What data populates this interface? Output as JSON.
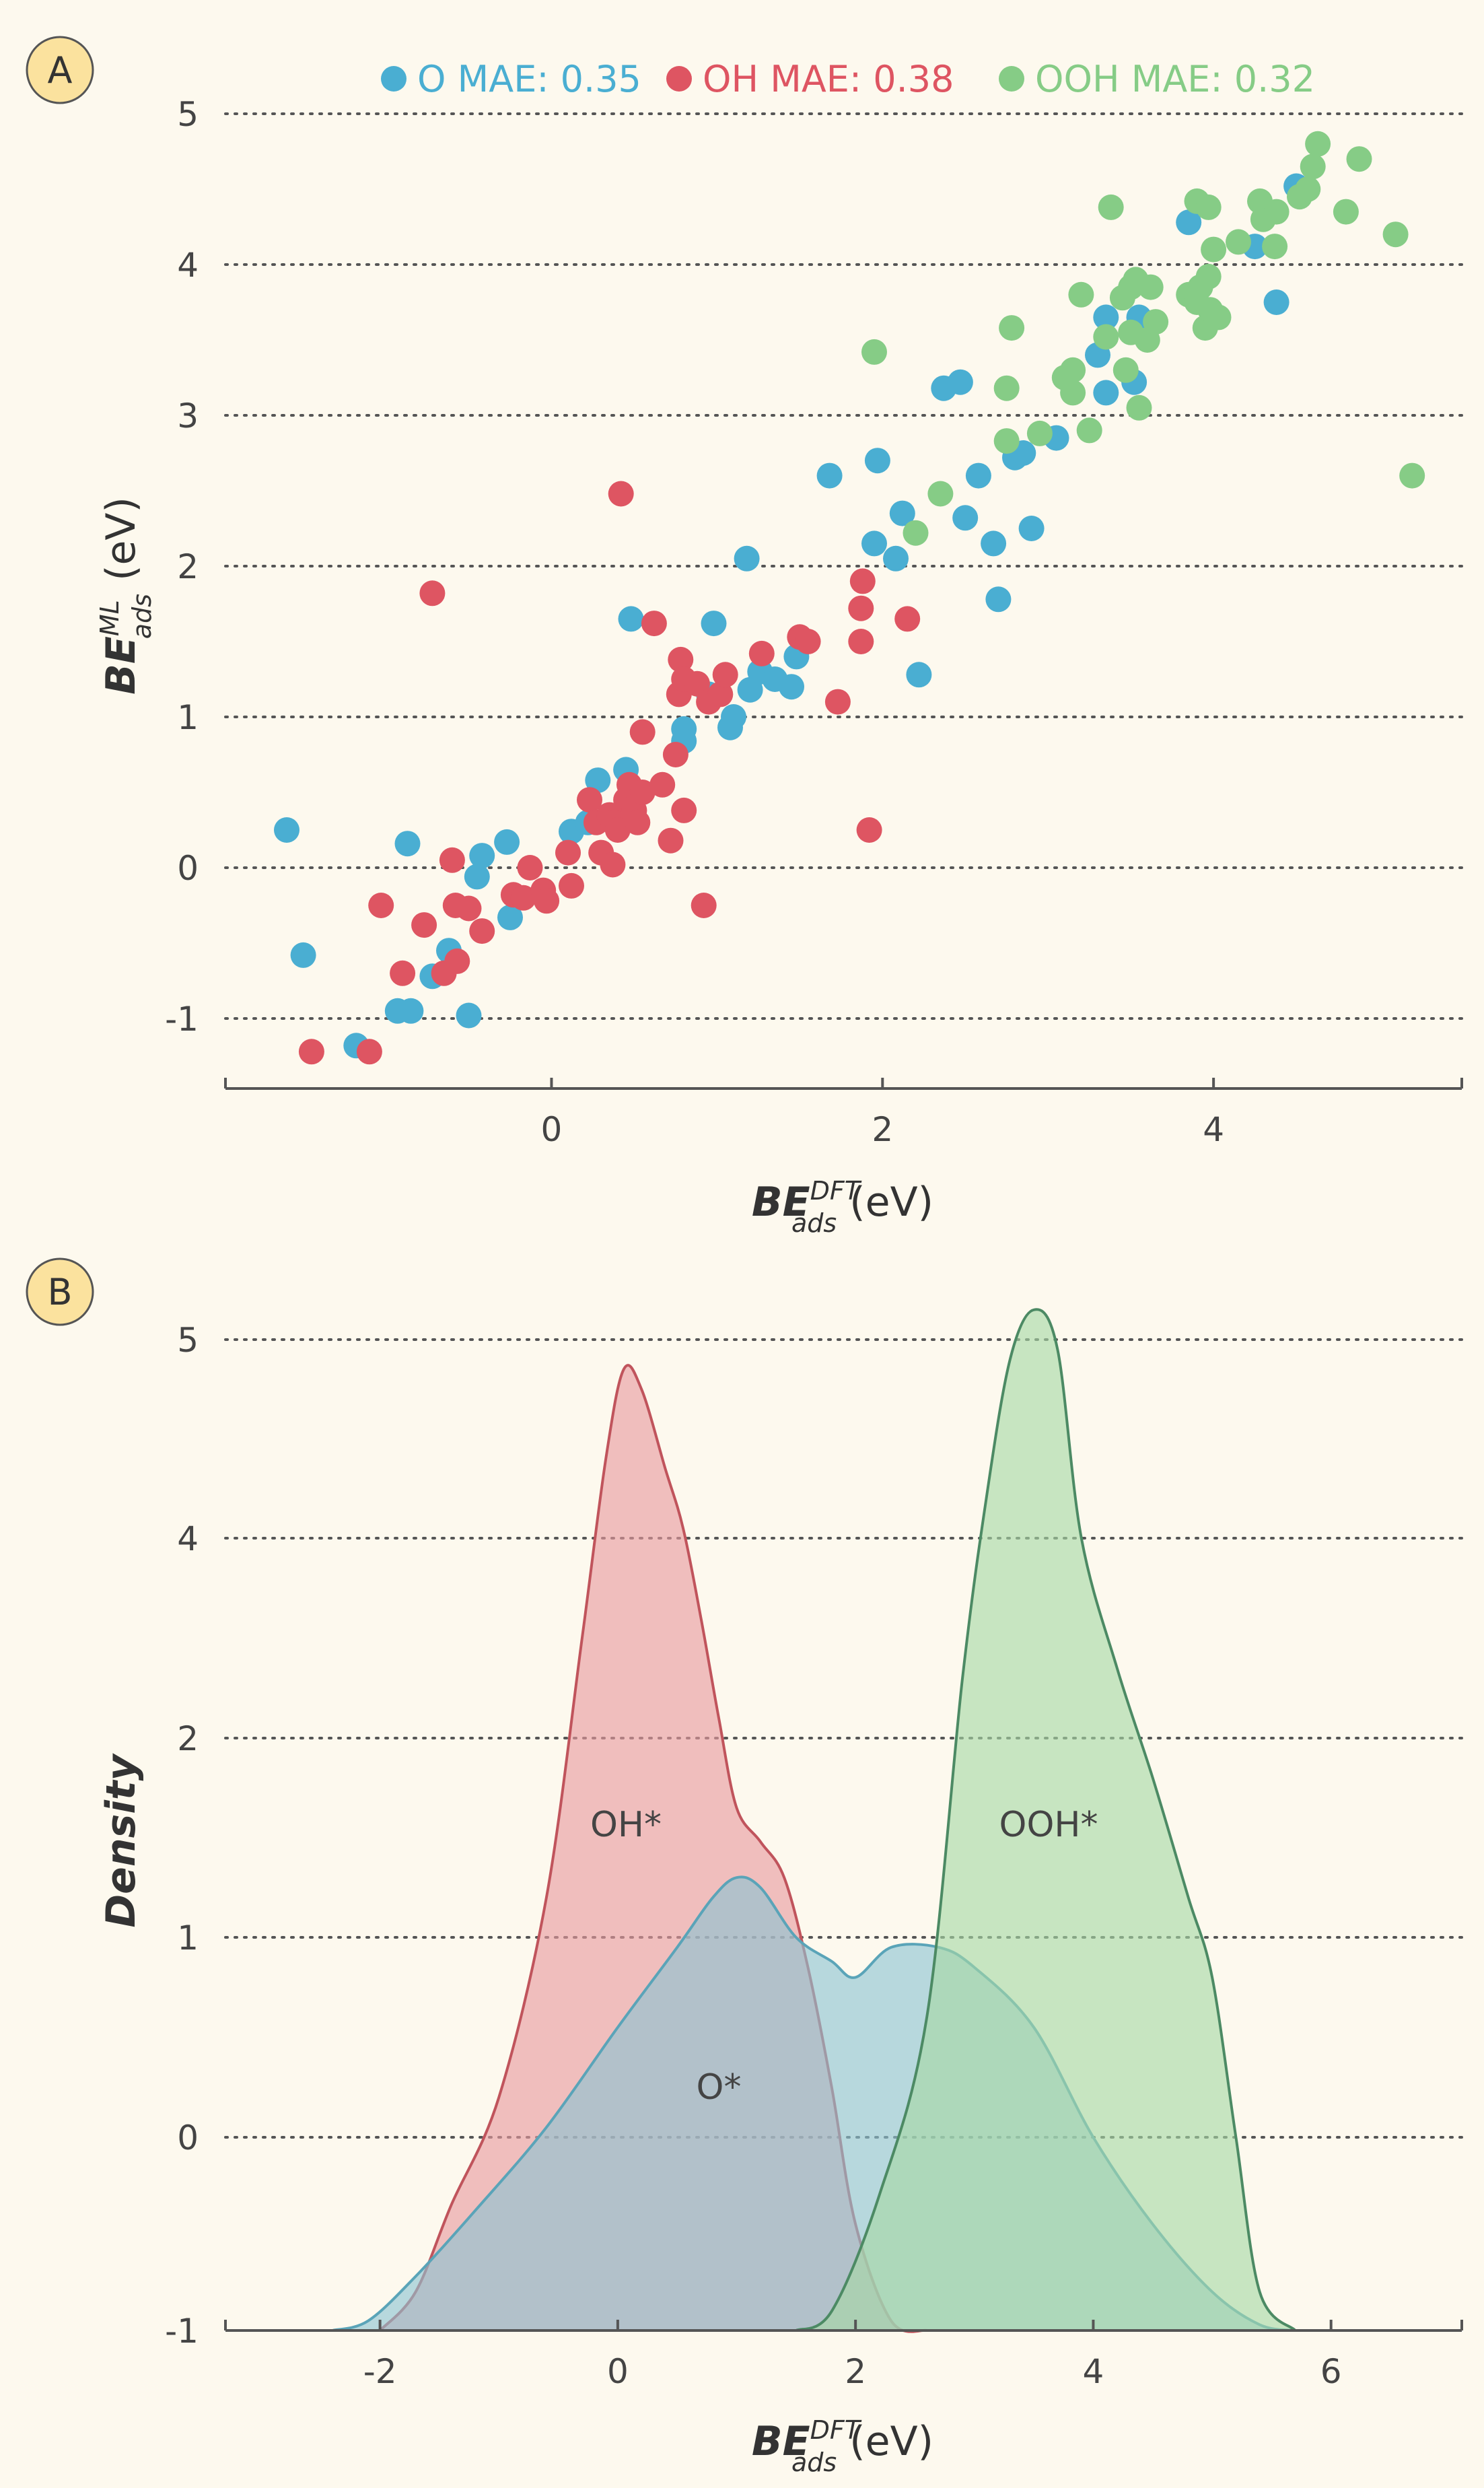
{
  "panel_a": {
    "letter": "A",
    "xlabel": {
      "main": "BE",
      "sup": "DFT",
      "sub": "ads",
      "unit": " (eV)"
    },
    "ylabel": {
      "main": "BE",
      "sup": "ML",
      "sub": "ads",
      "unit": " (eV)"
    },
    "legend": [
      {
        "label": "O MAE: 0.35",
        "color": "#4aaed2"
      },
      {
        "label": "OH MAE: 0.38",
        "color": "#de5562"
      },
      {
        "label": "OOH MAE: 0.32",
        "color": "#86cc86"
      }
    ]
  },
  "panel_b": {
    "letter": "B",
    "xlabel": {
      "main": "BE",
      "sup": "DFT",
      "sub": "ads",
      "unit": " (eV)"
    },
    "ylabel": "Density",
    "labels": [
      "OH*",
      "O*",
      "OOH*"
    ]
  },
  "chart_data": [
    {
      "type": "scatter",
      "xlim": [
        -1.97,
        5.5
      ],
      "ylim": [
        -1.45,
        5.0
      ],
      "xticks": [
        "0",
        "2",
        "4"
      ],
      "xtick_values": [
        0,
        2,
        4
      ],
      "yticks": [
        "-1",
        "0",
        "1",
        "2",
        "3",
        "4",
        "5"
      ],
      "ytick_values": [
        -1,
        0,
        1,
        2,
        3,
        4,
        5
      ],
      "grid": "horizontal dotted",
      "legend_position": "top",
      "series": [
        {
          "name": "O MAE: 0.35",
          "color": "#4aaed2",
          "points": [
            [
              -1.6,
              0.25
            ],
            [
              -1.5,
              -0.58
            ],
            [
              -1.18,
              -1.18
            ],
            [
              -0.93,
              -0.95
            ],
            [
              -0.85,
              -0.95
            ],
            [
              -0.72,
              -0.72
            ],
            [
              -0.62,
              -0.55
            ],
            [
              -0.5,
              -0.98
            ],
            [
              -0.45,
              -0.06
            ],
            [
              -0.42,
              0.08
            ],
            [
              -0.27,
              0.17
            ],
            [
              -0.25,
              -0.33
            ],
            [
              -0.87,
              0.16
            ],
            [
              0.12,
              0.24
            ],
            [
              0.22,
              0.3
            ],
            [
              0.28,
              0.58
            ],
            [
              0.45,
              0.65
            ],
            [
              0.48,
              1.65
            ],
            [
              0.8,
              0.92
            ],
            [
              0.8,
              0.84
            ],
            [
              0.95,
              1.15
            ],
            [
              0.98,
              1.62
            ],
            [
              1.08,
              0.93
            ],
            [
              1.1,
              1.0
            ],
            [
              1.2,
              1.18
            ],
            [
              1.26,
              1.3
            ],
            [
              1.35,
              1.25
            ],
            [
              1.45,
              1.2
            ],
            [
              1.48,
              1.4
            ],
            [
              1.18,
              2.05
            ],
            [
              1.68,
              2.6
            ],
            [
              1.95,
              2.15
            ],
            [
              1.97,
              2.7
            ],
            [
              2.08,
              2.05
            ],
            [
              2.12,
              2.35
            ],
            [
              2.22,
              1.28
            ],
            [
              2.37,
              3.18
            ],
            [
              2.47,
              3.22
            ],
            [
              2.5,
              2.32
            ],
            [
              2.58,
              2.6
            ],
            [
              2.67,
              2.15
            ],
            [
              2.7,
              1.78
            ],
            [
              2.8,
              2.72
            ],
            [
              2.85,
              2.75
            ],
            [
              2.9,
              2.25
            ],
            [
              3.05,
              2.85
            ],
            [
              3.3,
              3.4
            ],
            [
              3.35,
              3.65
            ],
            [
              3.35,
              3.15
            ],
            [
              3.52,
              3.22
            ],
            [
              3.55,
              3.65
            ],
            [
              3.6,
              3.6
            ],
            [
              3.85,
              4.28
            ],
            [
              4.25,
              4.12
            ],
            [
              4.38,
              3.75
            ],
            [
              4.5,
              4.52
            ]
          ]
        },
        {
          "name": "OH MAE: 0.38",
          "color": "#de5562",
          "points": [
            [
              -1.45,
              -1.22
            ],
            [
              -1.1,
              -1.22
            ],
            [
              -1.03,
              -0.25
            ],
            [
              -0.9,
              -0.7
            ],
            [
              -0.77,
              -0.38
            ],
            [
              -0.72,
              1.82
            ],
            [
              -0.65,
              -0.7
            ],
            [
              -0.6,
              0.05
            ],
            [
              -0.58,
              -0.25
            ],
            [
              -0.57,
              -0.62
            ],
            [
              -0.5,
              -0.27
            ],
            [
              -0.42,
              -0.42
            ],
            [
              -0.23,
              -0.18
            ],
            [
              -0.17,
              -0.2
            ],
            [
              -0.13,
              0.0
            ],
            [
              -0.05,
              -0.15
            ],
            [
              -0.03,
              -0.22
            ],
            [
              0.1,
              0.1
            ],
            [
              0.12,
              -0.12
            ],
            [
              0.23,
              0.45
            ],
            [
              0.27,
              0.3
            ],
            [
              0.3,
              0.1
            ],
            [
              0.35,
              0.35
            ],
            [
              0.37,
              0.02
            ],
            [
              0.38,
              0.3
            ],
            [
              0.4,
              0.25
            ],
            [
              0.42,
              2.48
            ],
            [
              0.45,
              0.45
            ],
            [
              0.47,
              0.55
            ],
            [
              0.5,
              0.38
            ],
            [
              0.52,
              0.3
            ],
            [
              0.55,
              0.5
            ],
            [
              0.55,
              0.9
            ],
            [
              0.62,
              1.62
            ],
            [
              0.67,
              0.55
            ],
            [
              0.72,
              0.18
            ],
            [
              0.75,
              0.75
            ],
            [
              0.77,
              1.15
            ],
            [
              0.78,
              1.38
            ],
            [
              0.8,
              1.25
            ],
            [
              0.8,
              0.38
            ],
            [
              0.88,
              1.22
            ],
            [
              0.92,
              -0.25
            ],
            [
              0.95,
              1.1
            ],
            [
              1.02,
              1.15
            ],
            [
              1.05,
              1.28
            ],
            [
              1.27,
              1.42
            ],
            [
              1.5,
              1.53
            ],
            [
              1.55,
              1.5
            ],
            [
              1.73,
              1.1
            ],
            [
              1.87,
              1.5
            ],
            [
              1.87,
              1.72
            ],
            [
              1.88,
              1.9
            ],
            [
              1.92,
              0.25
            ],
            [
              2.15,
              1.65
            ]
          ]
        },
        {
          "name": "OOH MAE: 0.32",
          "color": "#86cc86",
          "points": [
            [
              1.95,
              3.42
            ],
            [
              2.2,
              2.22
            ],
            [
              2.35,
              2.48
            ],
            [
              2.75,
              2.83
            ],
            [
              2.75,
              3.18
            ],
            [
              2.78,
              3.58
            ],
            [
              2.95,
              2.88
            ],
            [
              3.1,
              3.25
            ],
            [
              3.15,
              3.15
            ],
            [
              3.15,
              3.3
            ],
            [
              3.2,
              3.8
            ],
            [
              3.25,
              2.9
            ],
            [
              3.35,
              3.52
            ],
            [
              3.38,
              4.38
            ],
            [
              3.45,
              3.78
            ],
            [
              3.47,
              3.3
            ],
            [
              3.5,
              3.85
            ],
            [
              3.5,
              3.55
            ],
            [
              3.53,
              3.9
            ],
            [
              3.55,
              3.05
            ],
            [
              3.6,
              3.5
            ],
            [
              3.62,
              3.85
            ],
            [
              3.65,
              3.62
            ],
            [
              3.85,
              3.8
            ],
            [
              3.9,
              4.42
            ],
            [
              3.9,
              3.75
            ],
            [
              3.92,
              3.85
            ],
            [
              3.95,
              3.58
            ],
            [
              3.97,
              4.38
            ],
            [
              3.97,
              3.92
            ],
            [
              3.98,
              3.7
            ],
            [
              4.0,
              4.1
            ],
            [
              4.03,
              3.65
            ],
            [
              4.15,
              4.15
            ],
            [
              4.28,
              4.42
            ],
            [
              4.3,
              4.3
            ],
            [
              4.37,
              4.12
            ],
            [
              4.38,
              4.35
            ],
            [
              4.52,
              4.45
            ],
            [
              4.57,
              4.5
            ],
            [
              4.6,
              4.65
            ],
            [
              4.63,
              4.8
            ],
            [
              4.8,
              4.35
            ],
            [
              4.88,
              4.7
            ],
            [
              5.1,
              4.2
            ],
            [
              5.2,
              2.6
            ]
          ]
        }
      ]
    },
    {
      "type": "area",
      "xlim": [
        -3.3,
        7.1
      ],
      "yticks": [
        "-1",
        "0",
        "1",
        "2",
        "4",
        "5"
      ],
      "xticks": [
        "-2",
        "0",
        "2",
        "4",
        "6"
      ],
      "xtick_values": [
        -2,
        0,
        2,
        4,
        6
      ],
      "grid": "horizontal dotted",
      "series": [
        {
          "name": "OH*",
          "color": "#e99a9e",
          "line_color": "#c0545c",
          "x": [
            -2.0,
            -1.7,
            -1.4,
            -1.0,
            -0.6,
            -0.3,
            -0.1,
            0.05,
            0.2,
            0.4,
            0.55,
            0.7,
            0.85,
            1.0,
            1.2,
            1.4,
            1.6,
            1.8,
            2.0,
            2.3,
            2.6
          ],
          "y_level": [
            -1.0,
            -0.8,
            -0.35,
            0.2,
            1.2,
            3.0,
            4.4,
            4.85,
            4.75,
            4.35,
            4.05,
            3.2,
            2.2,
            1.65,
            1.48,
            1.3,
            0.85,
            0.25,
            -0.45,
            -0.95,
            -1.0
          ]
        },
        {
          "name": "O*",
          "color": "#8cc4d2",
          "line_color": "#5aa4b8",
          "x": [
            -2.4,
            -2.1,
            -1.7,
            -1.2,
            -0.6,
            0.0,
            0.5,
            0.8,
            1.0,
            1.2,
            1.5,
            1.8,
            2.0,
            2.3,
            2.7,
            3.0,
            3.5,
            4.0,
            4.5,
            5.0,
            5.4,
            5.7
          ],
          "y_level": [
            -1.0,
            -0.95,
            -0.72,
            -0.38,
            0.05,
            0.55,
            0.95,
            1.2,
            1.3,
            1.25,
            1.0,
            0.88,
            0.8,
            0.95,
            0.95,
            0.85,
            0.55,
            0.0,
            -0.45,
            -0.8,
            -0.97,
            -1.0
          ]
        },
        {
          "name": "OOH*",
          "color": "#a6d8a4",
          "line_color": "#4c8a64",
          "x": [
            1.5,
            1.8,
            2.2,
            2.6,
            2.9,
            3.1,
            3.3,
            3.5,
            3.7,
            3.9,
            4.2,
            4.5,
            4.8,
            5.0,
            5.2,
            5.4,
            5.7
          ],
          "y_level": [
            -1.0,
            -0.9,
            -0.3,
            0.6,
            2.6,
            4.2,
            4.9,
            5.15,
            4.95,
            4.0,
            2.7,
            1.8,
            1.2,
            0.8,
            0.0,
            -0.8,
            -1.0
          ]
        }
      ]
    }
  ]
}
